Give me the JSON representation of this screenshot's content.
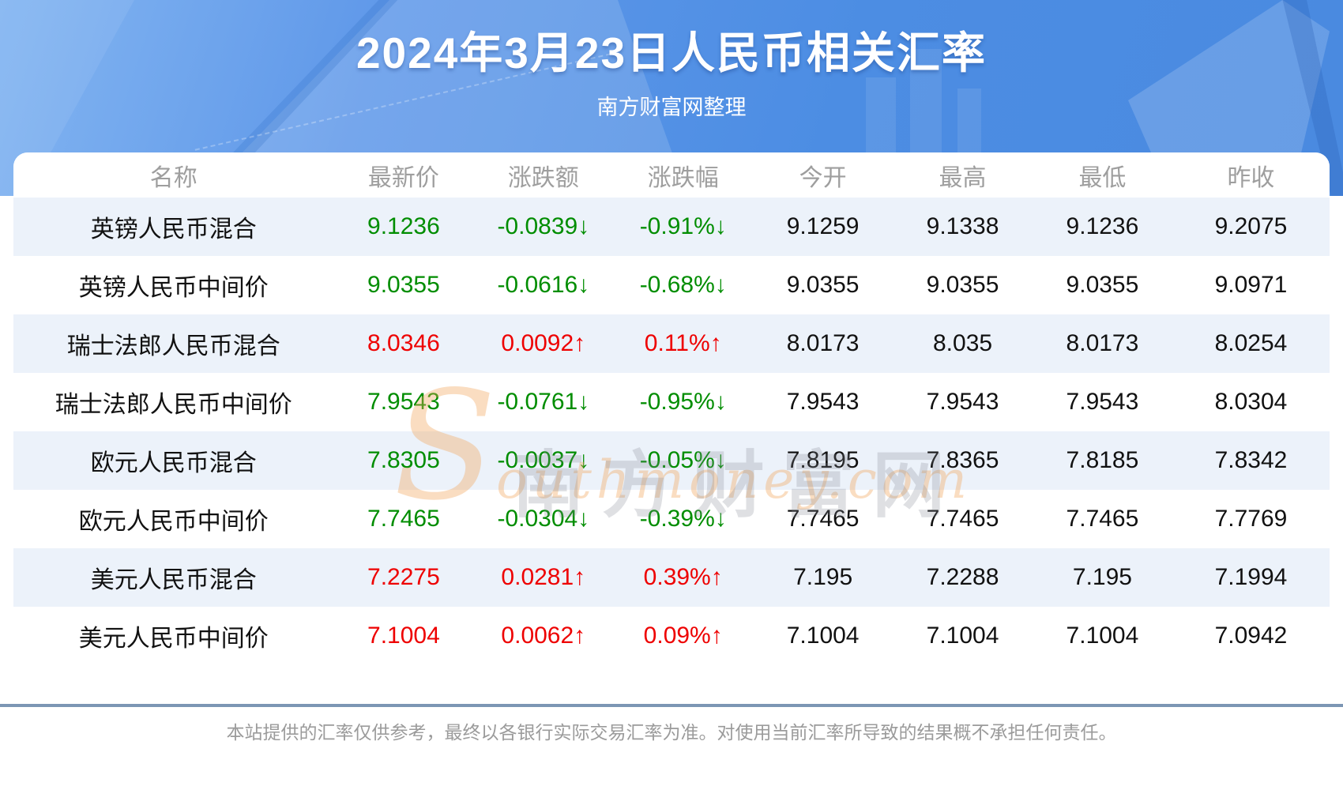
{
  "banner": {
    "title": "2024年3月23日人民币相关汇率",
    "subtitle": "南方财富网整理"
  },
  "table": {
    "headers": [
      "名称",
      "最新价",
      "涨跌额",
      "涨跌幅",
      "今开",
      "最高",
      "最低",
      "昨收"
    ],
    "rows": [
      {
        "name": "英镑人民币混合",
        "latest": "9.1236",
        "change": "-0.0839↓",
        "change_pct": "-0.91%↓",
        "open": "9.1259",
        "high": "9.1338",
        "low": "9.1236",
        "prev_close": "9.2075",
        "trend": "down"
      },
      {
        "name": "英镑人民币中间价",
        "latest": "9.0355",
        "change": "-0.0616↓",
        "change_pct": "-0.68%↓",
        "open": "9.0355",
        "high": "9.0355",
        "low": "9.0355",
        "prev_close": "9.0971",
        "trend": "down"
      },
      {
        "name": "瑞士法郎人民币混合",
        "latest": "8.0346",
        "change": "0.0092↑",
        "change_pct": "0.11%↑",
        "open": "8.0173",
        "high": "8.035",
        "low": "8.0173",
        "prev_close": "8.0254",
        "trend": "up"
      },
      {
        "name": "瑞士法郎人民币中间价",
        "latest": "7.9543",
        "change": "-0.0761↓",
        "change_pct": "-0.95%↓",
        "open": "7.9543",
        "high": "7.9543",
        "low": "7.9543",
        "prev_close": "8.0304",
        "trend": "down"
      },
      {
        "name": "欧元人民币混合",
        "latest": "7.8305",
        "change": "-0.0037↓",
        "change_pct": "-0.05%↓",
        "open": "7.8195",
        "high": "7.8365",
        "low": "7.8185",
        "prev_close": "7.8342",
        "trend": "down"
      },
      {
        "name": "欧元人民币中间价",
        "latest": "7.7465",
        "change": "-0.0304↓",
        "change_pct": "-0.39%↓",
        "open": "7.7465",
        "high": "7.7465",
        "low": "7.7465",
        "prev_close": "7.7769",
        "trend": "down"
      },
      {
        "name": "美元人民币混合",
        "latest": "7.2275",
        "change": "0.0281↑",
        "change_pct": "0.39%↑",
        "open": "7.195",
        "high": "7.2288",
        "low": "7.195",
        "prev_close": "7.1994",
        "trend": "up"
      },
      {
        "name": "美元人民币中间价",
        "latest": "7.1004",
        "change": "0.0062↑",
        "change_pct": "0.09%↑",
        "open": "7.1004",
        "high": "7.1004",
        "low": "7.1004",
        "prev_close": "7.0942",
        "trend": "up"
      }
    ]
  },
  "watermark": {
    "cn": "南方财富网",
    "en": "Southmoney.com",
    "en_initial": "S",
    "en_rest": "outhmoney.com"
  },
  "footer": {
    "disclaimer": "本站提供的汇率仅供参考，最终以各银行实际交易汇率为准。对使用当前汇率所导致的结果概不承担任何责任。"
  },
  "colors": {
    "up": "#ee0000",
    "down": "#008d00",
    "banner_blue": "#4c8de3",
    "stripe": "#ecf2fa",
    "divider": "#7c96b4"
  },
  "chart_data": {
    "type": "table",
    "title": "2024年3月23日人民币相关汇率",
    "subtitle": "南方财富网整理",
    "columns": [
      "名称",
      "最新价",
      "涨跌额",
      "涨跌幅",
      "今开",
      "最高",
      "最低",
      "昨收"
    ],
    "rows": [
      [
        "英镑人民币混合",
        9.1236,
        -0.0839,
        "-0.91%",
        9.1259,
        9.1338,
        9.1236,
        9.2075
      ],
      [
        "英镑人民币中间价",
        9.0355,
        -0.0616,
        "-0.68%",
        9.0355,
        9.0355,
        9.0355,
        9.0971
      ],
      [
        "瑞士法郎人民币混合",
        8.0346,
        0.0092,
        "0.11%",
        8.0173,
        8.035,
        8.0173,
        8.0254
      ],
      [
        "瑞士法郎人民币中间价",
        7.9543,
        -0.0761,
        "-0.95%",
        7.9543,
        7.9543,
        7.9543,
        8.0304
      ],
      [
        "欧元人民币混合",
        7.8305,
        -0.0037,
        "-0.05%",
        7.8195,
        7.8365,
        7.8185,
        7.8342
      ],
      [
        "欧元人民币中间价",
        7.7465,
        -0.0304,
        "-0.39%",
        7.7465,
        7.7465,
        7.7465,
        7.7769
      ],
      [
        "美元人民币混合",
        7.2275,
        0.0281,
        "0.39%",
        7.195,
        7.2288,
        7.195,
        7.1994
      ],
      [
        "美元人民币中间价",
        7.1004,
        0.0062,
        "0.09%",
        7.1004,
        7.1004,
        7.1004,
        7.0942
      ]
    ],
    "row_trends": [
      "down",
      "down",
      "up",
      "down",
      "down",
      "down",
      "up",
      "up"
    ]
  }
}
